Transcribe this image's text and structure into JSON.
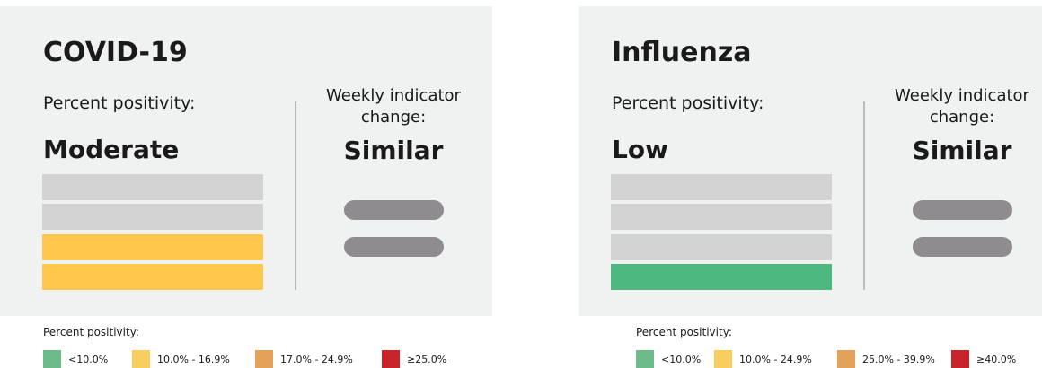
{
  "cards": [
    {
      "title": "COVID-19",
      "subtitle": "Percent positivity:",
      "level": "Moderate",
      "change_label": "Weekly indicator change:",
      "change": "Similar",
      "legend": {
        "title": "Percent positivity:",
        "items": [
          {
            "label": "<10.0%",
            "color": "#6dbb8a"
          },
          {
            "label": "10.0% - 16.9%",
            "color": "#f7cd5d"
          },
          {
            "label": "17.0% - 24.9%",
            "color": "#e3a15a"
          },
          {
            "label": "≥25.0%",
            "color": "#c8232b"
          }
        ]
      }
    },
    {
      "title": "Influenza",
      "subtitle": "Percent positivity:",
      "level": "Low",
      "change_label": "Weekly indicator change:",
      "change": "Similar",
      "legend": {
        "title": "Percent positivity:",
        "items": [
          {
            "label": "<10.0%",
            "color": "#6dbb8a"
          },
          {
            "label": "10.0% - 24.9%",
            "color": "#f7cd5d"
          },
          {
            "label": "25.0% - 39.9%",
            "color": "#e3a15a"
          },
          {
            "label": "≥40.0%",
            "color": "#c8232b"
          }
        ]
      }
    }
  ]
}
